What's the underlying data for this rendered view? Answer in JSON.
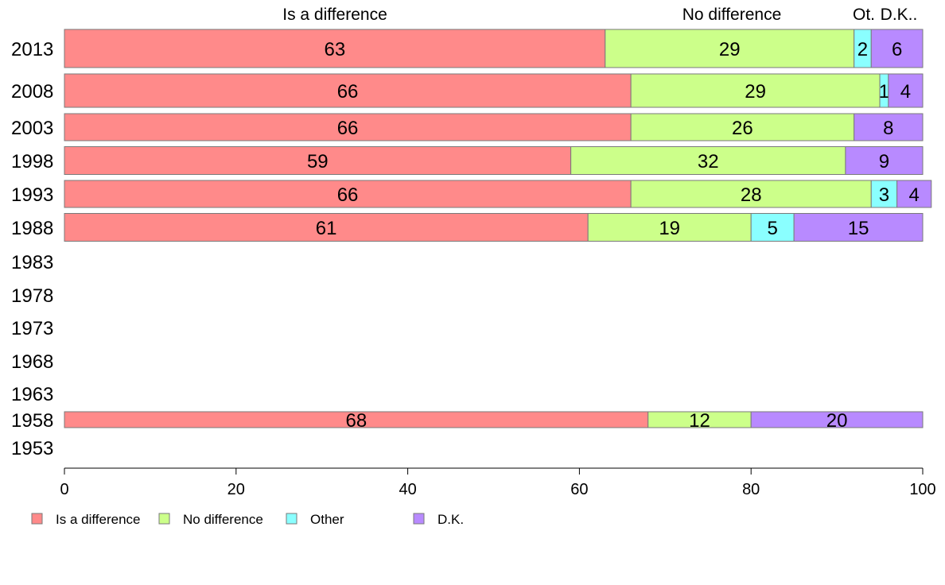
{
  "chart_data": {
    "type": "bar",
    "orientation": "horizontal",
    "stacked": true,
    "xlim": [
      0,
      100
    ],
    "xticks": [
      0,
      20,
      40,
      60,
      80,
      100
    ],
    "grid": false,
    "legend_position": "bottom-left",
    "top_labels": [
      "Is a difference",
      "No difference",
      "Ot.",
      "D.K.."
    ],
    "series": [
      {
        "name": "Is a difference",
        "color": "#ff8a8a"
      },
      {
        "name": "No difference",
        "color": "#ccff8a"
      },
      {
        "name": "Other",
        "color": "#8affff"
      },
      {
        "name": "D.K.",
        "color": "#b88aff"
      }
    ],
    "categories": [
      "2013",
      "2008",
      "2003",
      "1998",
      "1993",
      "1988",
      "1983",
      "1978",
      "1973",
      "1968",
      "1963",
      "1958",
      "1953"
    ],
    "rows": [
      {
        "year": "2013",
        "values": [
          63,
          29,
          2,
          6
        ]
      },
      {
        "year": "2008",
        "values": [
          66,
          29,
          1,
          4
        ]
      },
      {
        "year": "2003",
        "values": [
          66,
          26,
          0,
          8
        ]
      },
      {
        "year": "1998",
        "values": [
          59,
          32,
          0,
          9
        ]
      },
      {
        "year": "1993",
        "values": [
          66,
          28,
          3,
          4
        ]
      },
      {
        "year": "1988",
        "values": [
          61,
          19,
          5,
          15
        ]
      },
      {
        "year": "1983",
        "values": null
      },
      {
        "year": "1978",
        "values": null
      },
      {
        "year": "1973",
        "values": null
      },
      {
        "year": "1968",
        "values": null
      },
      {
        "year": "1963",
        "values": null
      },
      {
        "year": "1958",
        "values": [
          68,
          12,
          0,
          20
        ]
      },
      {
        "year": "1953",
        "values": null
      }
    ]
  }
}
